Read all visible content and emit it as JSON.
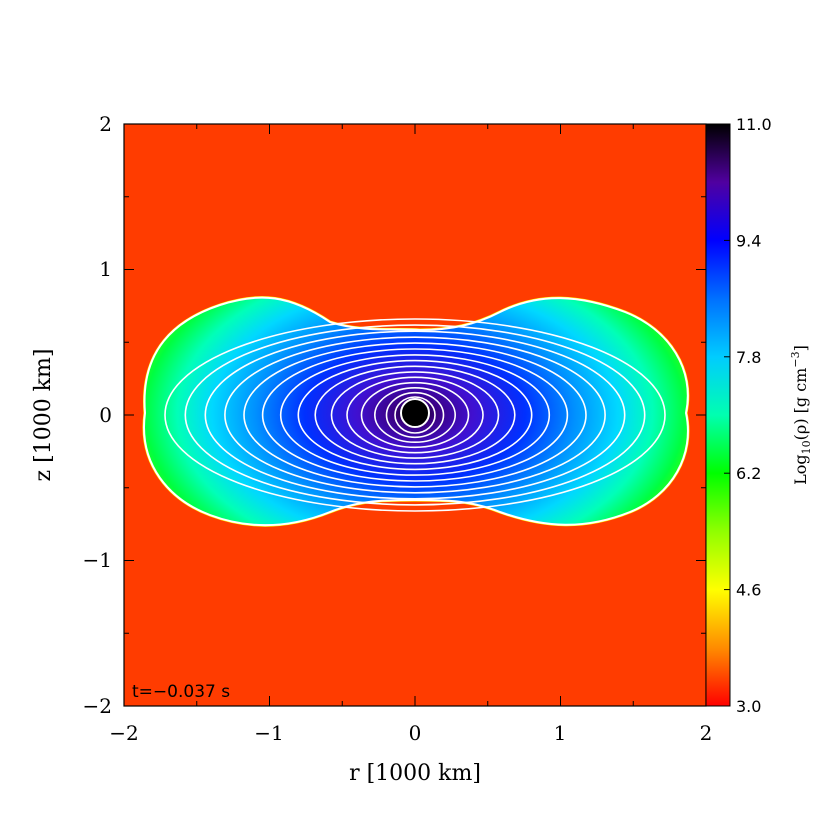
{
  "chart_data": {
    "type": "heatmap",
    "xlabel": "r [1000 km]",
    "ylabel": "z [1000 km]",
    "xlim": [
      -2,
      2
    ],
    "ylim": [
      -2,
      2
    ],
    "x_ticks": [
      "−2",
      "−1",
      "0",
      "1",
      "2"
    ],
    "y_ticks": [
      "−2",
      "−1",
      "0",
      "1",
      "2"
    ],
    "annotation": "t=−0.037 s",
    "colorbar": {
      "label": "Log10(ρ) [g cm⁻³]",
      "label_base": "Log",
      "label_sub": "10",
      "label_rest": "(ρ) [g cm",
      "label_sup": "−3",
      "label_close": "]",
      "range": [
        3.0,
        11.0
      ],
      "ticks": [
        "11.0",
        "9.4",
        "7.8",
        "6.2",
        "4.6",
        "3.0"
      ],
      "tick_values": [
        11.0,
        9.4,
        7.8,
        6.2,
        4.6,
        3.0
      ]
    },
    "background_value": 3.0,
    "contour_levels": [
      6.5,
      7.0,
      7.5,
      8.0,
      8.3,
      8.6,
      8.9,
      9.1,
      9.3,
      9.5,
      9.7,
      9.9,
      10.1,
      10.3,
      10.5
    ]
  }
}
